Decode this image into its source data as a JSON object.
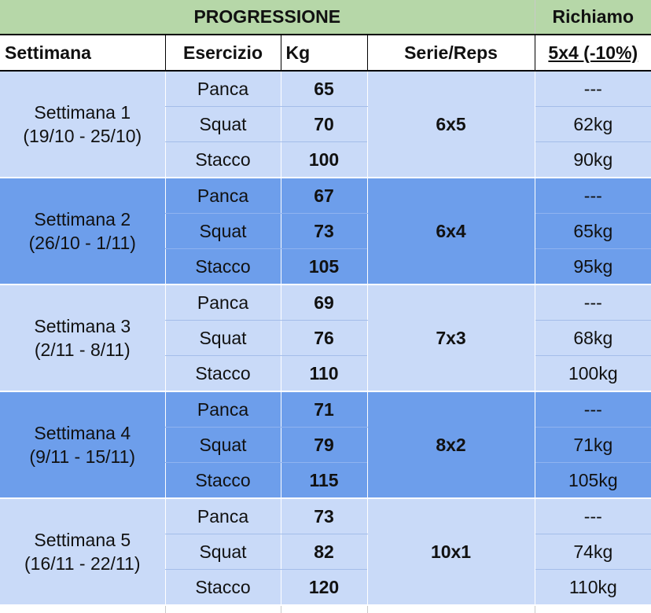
{
  "header": {
    "progressione": "PROGRESSIONE",
    "richiamo": "Richiamo"
  },
  "columns": {
    "settimana": "Settimana",
    "esercizio": "Esercizio",
    "kg": "Kg",
    "serie_reps": "Serie/Reps",
    "richiamo_sub": "5x4 (-10%)"
  },
  "weeks": [
    {
      "name": "Settimana 1",
      "dates": "(19/10 - 25/10)",
      "serie": "6x5",
      "rows": [
        {
          "esercizio": "Panca",
          "kg": "65",
          "richiamo": "---"
        },
        {
          "esercizio": "Squat",
          "kg": "70",
          "richiamo": "62kg"
        },
        {
          "esercizio": "Stacco",
          "kg": "100",
          "richiamo": "90kg"
        }
      ]
    },
    {
      "name": "Settimana 2",
      "dates": "(26/10 - 1/11)",
      "serie": "6x4",
      "rows": [
        {
          "esercizio": "Panca",
          "kg": "67",
          "richiamo": "---"
        },
        {
          "esercizio": "Squat",
          "kg": "73",
          "richiamo": "65kg"
        },
        {
          "esercizio": "Stacco",
          "kg": "105",
          "richiamo": "95kg"
        }
      ]
    },
    {
      "name": "Settimana 3",
      "dates": "(2/11 - 8/11)",
      "serie": "7x3",
      "rows": [
        {
          "esercizio": "Panca",
          "kg": "69",
          "richiamo": "---"
        },
        {
          "esercizio": "Squat",
          "kg": "76",
          "richiamo": "68kg"
        },
        {
          "esercizio": "Stacco",
          "kg": "110",
          "richiamo": "100kg"
        }
      ]
    },
    {
      "name": "Settimana 4",
      "dates": "(9/11 - 15/11)",
      "serie": "8x2",
      "rows": [
        {
          "esercizio": "Panca",
          "kg": "71",
          "richiamo": "---"
        },
        {
          "esercizio": "Squat",
          "kg": "79",
          "richiamo": "71kg"
        },
        {
          "esercizio": "Stacco",
          "kg": "115",
          "richiamo": "105kg"
        }
      ]
    },
    {
      "name": "Settimana 5",
      "dates": "(16/11 - 22/11)",
      "serie": "10x1",
      "rows": [
        {
          "esercizio": "Panca",
          "kg": "73",
          "richiamo": "---"
        },
        {
          "esercizio": "Squat",
          "kg": "82",
          "richiamo": "74kg"
        },
        {
          "esercizio": "Stacco",
          "kg": "120",
          "richiamo": "110kg"
        }
      ]
    }
  ],
  "colors": {
    "header_green": "#b6d7a8",
    "light_blue": "#c9daf8",
    "dark_blue": "#6d9eeb"
  }
}
